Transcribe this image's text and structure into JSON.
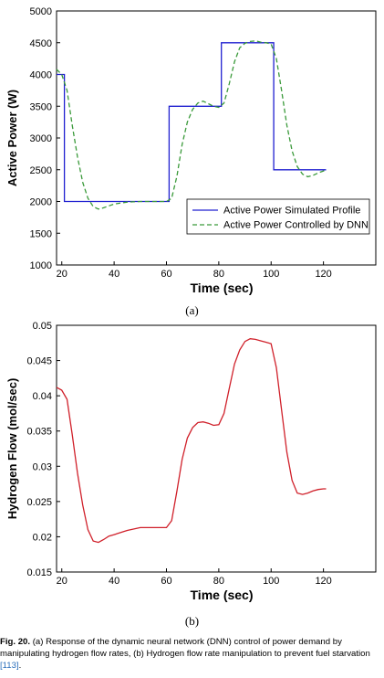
{
  "chart_data": [
    {
      "type": "line",
      "xlabel": "Time (sec)",
      "ylabel": "Active Power  (W)",
      "xlim": [
        18,
        140
      ],
      "ylim": [
        1000,
        5000
      ],
      "xticks": [
        20,
        40,
        60,
        80,
        100,
        120
      ],
      "yticks": [
        1000,
        1500,
        2000,
        2500,
        3000,
        3500,
        4000,
        4500,
        5000
      ],
      "grid": false,
      "legend_position": "bottom-right",
      "series": [
        {
          "name": "Active Power Simulated Profile",
          "color": "#2020d0",
          "style": "solid",
          "x": [
            18,
            21,
            21,
            61,
            61,
            81,
            81,
            101,
            101,
            121
          ],
          "y": [
            4000,
            4000,
            2000,
            2000,
            3500,
            3500,
            4500,
            4500,
            2500,
            2500
          ]
        },
        {
          "name": "Active Power Controlled by DNN",
          "color": "#3a9a3a",
          "style": "dashed",
          "x": [
            18,
            20,
            22,
            24,
            26,
            28,
            30,
            32,
            34,
            36,
            40,
            45,
            50,
            55,
            60,
            62,
            64,
            66,
            68,
            70,
            72,
            74,
            76,
            78,
            80,
            82,
            84,
            86,
            88,
            90,
            92,
            94,
            96,
            98,
            100,
            102,
            104,
            106,
            108,
            110,
            112,
            114,
            116,
            118,
            120,
            121
          ],
          "y": [
            4080,
            4000,
            3750,
            3200,
            2700,
            2300,
            2050,
            1920,
            1880,
            1900,
            1960,
            1990,
            2000,
            2000,
            2000,
            2050,
            2400,
            2900,
            3250,
            3450,
            3550,
            3580,
            3540,
            3500,
            3480,
            3550,
            3850,
            4200,
            4420,
            4490,
            4520,
            4530,
            4510,
            4500,
            4480,
            4250,
            3750,
            3200,
            2800,
            2550,
            2430,
            2390,
            2410,
            2450,
            2480,
            2490
          ]
        }
      ]
    },
    {
      "type": "line",
      "xlabel": "Time (sec)",
      "ylabel": "Hydrogen Flow (mol/sec)",
      "xlim": [
        18,
        140
      ],
      "ylim": [
        0.015,
        0.05
      ],
      "xticks": [
        20,
        40,
        60,
        80,
        100,
        120
      ],
      "yticks": [
        0.015,
        0.02,
        0.025,
        0.03,
        0.035,
        0.04,
        0.045,
        0.05
      ],
      "grid": false,
      "series": [
        {
          "color": "#d0202a",
          "style": "solid",
          "x": [
            18,
            20,
            22,
            24,
            26,
            28,
            30,
            32,
            34,
            36,
            38,
            40,
            45,
            50,
            55,
            60,
            62,
            64,
            66,
            68,
            70,
            72,
            74,
            76,
            78,
            80,
            82,
            84,
            86,
            88,
            90,
            92,
            94,
            96,
            98,
            100,
            102,
            104,
            106,
            108,
            110,
            112,
            114,
            116,
            118,
            120,
            121
          ],
          "y": [
            0.0412,
            0.0408,
            0.0395,
            0.0345,
            0.029,
            0.0245,
            0.021,
            0.0194,
            0.0192,
            0.0196,
            0.0201,
            0.0203,
            0.0209,
            0.0213,
            0.0213,
            0.0213,
            0.0223,
            0.0265,
            0.031,
            0.034,
            0.0355,
            0.0362,
            0.0363,
            0.0361,
            0.0358,
            0.0359,
            0.0375,
            0.041,
            0.0445,
            0.0465,
            0.0477,
            0.0481,
            0.048,
            0.0478,
            0.0476,
            0.0474,
            0.044,
            0.038,
            0.032,
            0.028,
            0.0262,
            0.026,
            0.0262,
            0.0265,
            0.0267,
            0.0268,
            0.0268
          ]
        }
      ]
    }
  ],
  "panels": {
    "a_label": "(a)",
    "b_label": "(b)"
  },
  "caption": {
    "fig_label": "Fig. 20.",
    "text": " (a) Response of the dynamic neural network (DNN) control of power demand by manipulating hydrogen flow rates, (b) Hydrogen flow rate manipulation to prevent fuel starvation ",
    "ref": "[113]",
    "end": "."
  }
}
